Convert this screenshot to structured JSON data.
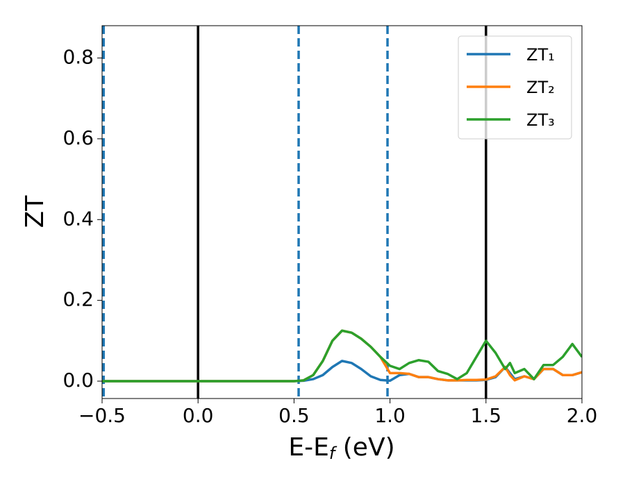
{
  "chart_data": {
    "type": "line",
    "xlabel": [
      "E-E",
      "f",
      " (eV)"
    ],
    "ylabel": "ZT",
    "x": [
      -0.5,
      0.0,
      0.5,
      0.55,
      0.6,
      0.65,
      0.7,
      0.75,
      0.8,
      0.85,
      0.9,
      0.95,
      1.0,
      1.05,
      1.1,
      1.15,
      1.2,
      1.25,
      1.3,
      1.35,
      1.4,
      1.45,
      1.5,
      1.55,
      1.6,
      1.625,
      1.65,
      1.7,
      1.75,
      1.8,
      1.85,
      1.9,
      1.95,
      2.0
    ],
    "series": [
      {
        "name": "ZT₁",
        "color": "#1f77b4",
        "values": [
          0,
          0,
          0,
          0.001,
          0.005,
          0.015,
          0.035,
          0.05,
          0.045,
          0.03,
          0.012,
          0.003,
          0.001,
          0.015,
          0.018,
          0.01,
          0.01,
          0.005,
          0.002,
          0.002,
          0.002,
          0.002,
          0.003,
          0.01,
          0.035,
          0.02,
          0.005,
          0.012,
          0.005,
          0.03,
          0.03,
          0.015,
          0.015,
          0.022
        ]
      },
      {
        "name": "ZT₂",
        "color": "#ff7f0e",
        "values": [
          0,
          0,
          0,
          0.002,
          0.015,
          0.05,
          0.1,
          0.125,
          0.12,
          0.105,
          0.085,
          0.06,
          0.02,
          0.02,
          0.018,
          0.01,
          0.01,
          0.005,
          0.002,
          0.002,
          0.003,
          0.003,
          0.004,
          0.012,
          0.035,
          0.015,
          0.002,
          0.012,
          0.005,
          0.03,
          0.03,
          0.015,
          0.015,
          0.022
        ]
      },
      {
        "name": "ZT₃",
        "color": "#2ca02c",
        "values": [
          0,
          0,
          0,
          0.002,
          0.015,
          0.05,
          0.1,
          0.125,
          0.12,
          0.105,
          0.085,
          0.06,
          0.038,
          0.03,
          0.045,
          0.052,
          0.048,
          0.025,
          0.018,
          0.005,
          0.02,
          0.06,
          0.1,
          0.07,
          0.03,
          0.045,
          0.02,
          0.03,
          0.005,
          0.04,
          0.04,
          0.06,
          0.092,
          0.06
        ]
      }
    ],
    "vlines": [
      {
        "x": 0,
        "color": "#000000",
        "style": "solid"
      },
      {
        "x": 1.5,
        "color": "#000000",
        "style": "solid"
      },
      {
        "x": -0.492,
        "color": "#1f77b4",
        "style": "dashed"
      },
      {
        "x": 0.524,
        "color": "#1f77b4",
        "style": "dashed"
      },
      {
        "x": 0.987,
        "color": "#1f77b4",
        "style": "dashed"
      }
    ],
    "xlim": [
      -0.5,
      2.0
    ],
    "ylim": [
      -0.043,
      0.88
    ],
    "xticks": [
      {
        "value": -0.5,
        "label": "−0.5"
      },
      {
        "value": 0,
        "label": "0.0"
      },
      {
        "value": 0.5,
        "label": "0.5"
      },
      {
        "value": 1,
        "label": "1.0"
      },
      {
        "value": 1.5,
        "label": "1.5"
      },
      {
        "value": 2,
        "label": "2.0"
      }
    ],
    "yticks": [
      {
        "value": 0,
        "label": "0.0"
      },
      {
        "value": 0.2,
        "label": "0.2"
      },
      {
        "value": 0.4,
        "label": "0.4"
      },
      {
        "value": 0.6,
        "label": "0.6"
      },
      {
        "value": 0.8,
        "label": "0.8"
      }
    ],
    "legend": "upper right"
  }
}
